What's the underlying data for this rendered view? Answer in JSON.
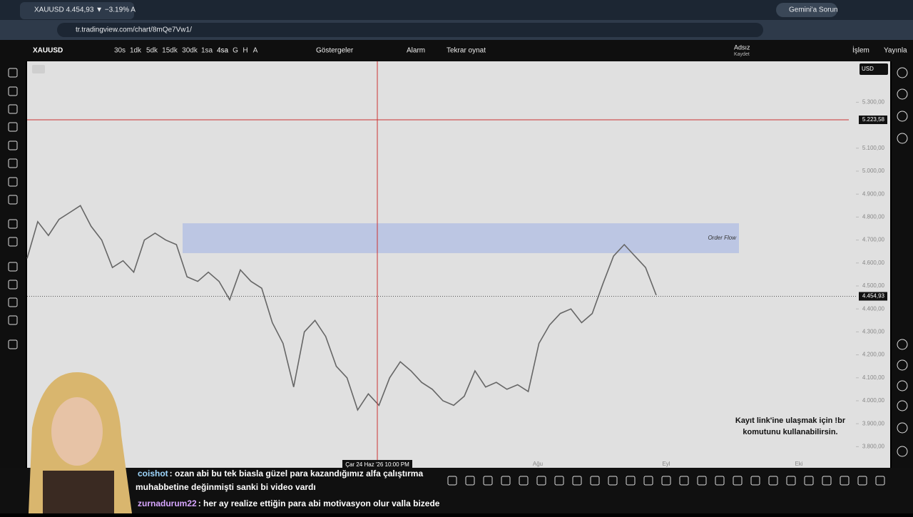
{
  "browser": {
    "tab_title": "XAUUSD 4.454,93 ▼ −3.19% A",
    "gemini": "Gemini'a Sorun",
    "url": "tr.tradingview.com/chart/8mQe7Vw1/"
  },
  "toolbar": {
    "symbol": "XAUUSD",
    "intervals": [
      "30s",
      "1dk",
      "5dk",
      "15dk",
      "30dk",
      "1sa",
      "4sa",
      "G",
      "H",
      "A"
    ],
    "indicators": "Göstergeler",
    "alarm": "Alarm",
    "replay": "Tekrar oynat",
    "layout_name": "Adsız",
    "save": "Kaydet",
    "trade": "İşlem",
    "publish": "Yayınla"
  },
  "chart": {
    "currency": "USD",
    "price_ticks": [
      {
        "value": 5300,
        "label": "5.300,00"
      },
      {
        "value": 5100,
        "label": "5.100,00"
      },
      {
        "value": 5000,
        "label": "5.000,00"
      },
      {
        "value": 4900,
        "label": "4.900,00"
      },
      {
        "value": 4800,
        "label": "4.800,00"
      },
      {
        "value": 4700,
        "label": "4.700,00"
      },
      {
        "value": 4600,
        "label": "4.600,00"
      },
      {
        "value": 4500,
        "label": "4.500,00"
      },
      {
        "value": 4400,
        "label": "4.400,00"
      },
      {
        "value": 4300,
        "label": "4.300,00"
      },
      {
        "value": 4200,
        "label": "4.200,00"
      },
      {
        "value": 4100,
        "label": "4.100,00"
      },
      {
        "value": 4000,
        "label": "4.000,00"
      },
      {
        "value": 3900,
        "label": "3.900,00"
      },
      {
        "value": 3800,
        "label": "3.800,00"
      }
    ],
    "last_price": {
      "value": 4454.93,
      "label": "4.454,93"
    },
    "crosshair_price": {
      "value": 5223.58,
      "label": "5.223,58"
    },
    "crosshair_time": "Çar 24 Haz '26   10:00 PM",
    "order_flow": {
      "label": "Order Flow",
      "top": 4773,
      "bottom": 4643
    },
    "prices": [
      4620,
      4780,
      4720,
      4790,
      4820,
      4850,
      4760,
      4700,
      4580,
      4610,
      4560,
      4700,
      4730,
      4700,
      4680,
      4540,
      4520,
      4560,
      4520,
      4440,
      4570,
      4520,
      4490,
      4340,
      4250,
      4060,
      4300,
      4350,
      4280,
      4150,
      4100,
      3960,
      4030,
      3980,
      4100,
      4170,
      4130,
      4080,
      4050,
      4000,
      3980,
      4020,
      4130,
      4060,
      4080,
      4050,
      4070,
      4040,
      4250,
      4330,
      4380,
      4400,
      4340,
      4380,
      4510,
      4630,
      4680,
      4630,
      4580,
      4460
    ],
    "time_labels": [
      "Ağu",
      "Eyl",
      "Eki"
    ],
    "overlay_lines": [
      "Kayıt link'ine ulaşmak için !br",
      "komutunu kullanabilirsin."
    ]
  },
  "chat": [
    {
      "user": "coishot",
      "message_lines": [
        ": ozan abi bu tek biasla güzel para kazandığımız alfa çalıştırma",
        "muhabbetine değinmişti sanki bi video vardı"
      ]
    },
    {
      "user": "zurnadurum22",
      "message_lines": [
        ": her ay realize ettiğin para abi motivasyon olur valla bizede"
      ]
    }
  ]
}
